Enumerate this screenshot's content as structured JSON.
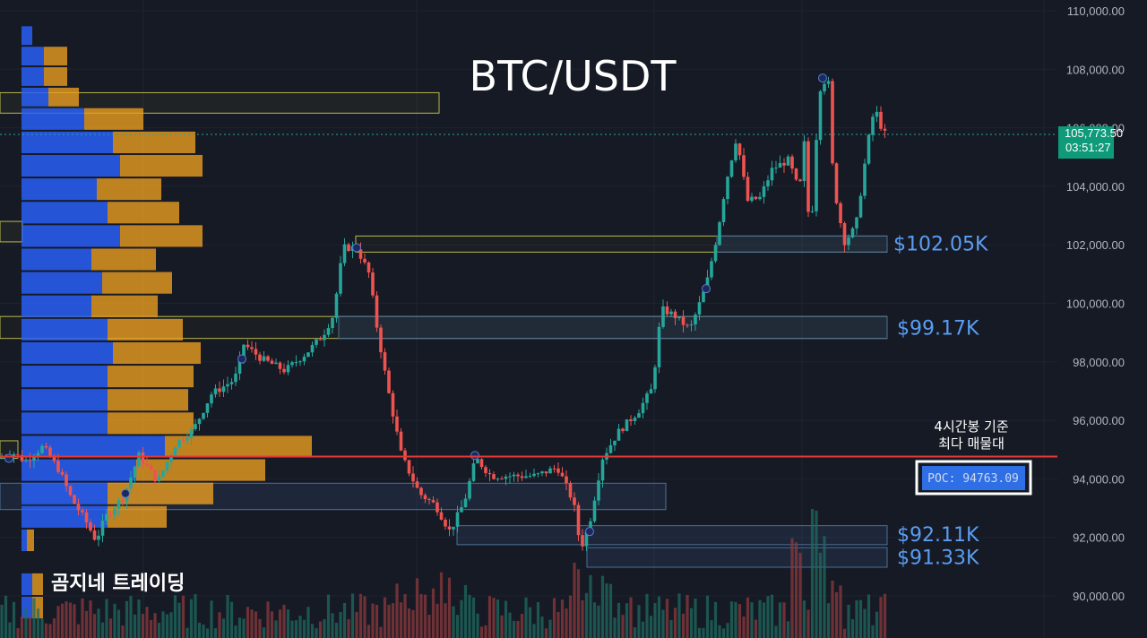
{
  "chart_data": {
    "type": "candlestick",
    "title": "BTC/USDT",
    "y_axis": {
      "ylim": [
        89000,
        110300
      ],
      "ticks": [
        90000,
        92000,
        94000,
        96000,
        98000,
        100000,
        102000,
        104000,
        106000,
        108000,
        110000
      ],
      "tick_labels": [
        "90,000.00",
        "92,000.00",
        "94,000.00",
        "96,000.00",
        "98,000.00",
        "100,000.00",
        "102,000.00",
        "104,000.00",
        "106,000.00",
        "108,000.00",
        "110,000.00"
      ],
      "position": "right"
    },
    "current_price": {
      "label": "105,773.50",
      "countdown": "03:51:27",
      "value": 105773.5
    },
    "key_levels": [
      {
        "label": "$102.05K",
        "value": 102050
      },
      {
        "label": "$99.17K",
        "value": 99170
      },
      {
        "label": "$92.11K",
        "value": 92110
      },
      {
        "label": "$91.33K",
        "value": 91330
      }
    ],
    "poc": {
      "label": "POC: 94763.09",
      "value": 94763.09
    },
    "annotation": {
      "line1": "4시간봉 기준",
      "line2": "최다 매물대"
    },
    "watermark": "곰지네 트레이딩",
    "colors": {
      "up": "#26a69a",
      "down": "#ef5350",
      "poc_line": "#e53935",
      "level_label": "#5a9df3",
      "profile_blue": "#2962ff",
      "profile_orange": "#f0a020",
      "background": "#161a25"
    },
    "candles": [],
    "volume_profile": []
  }
}
